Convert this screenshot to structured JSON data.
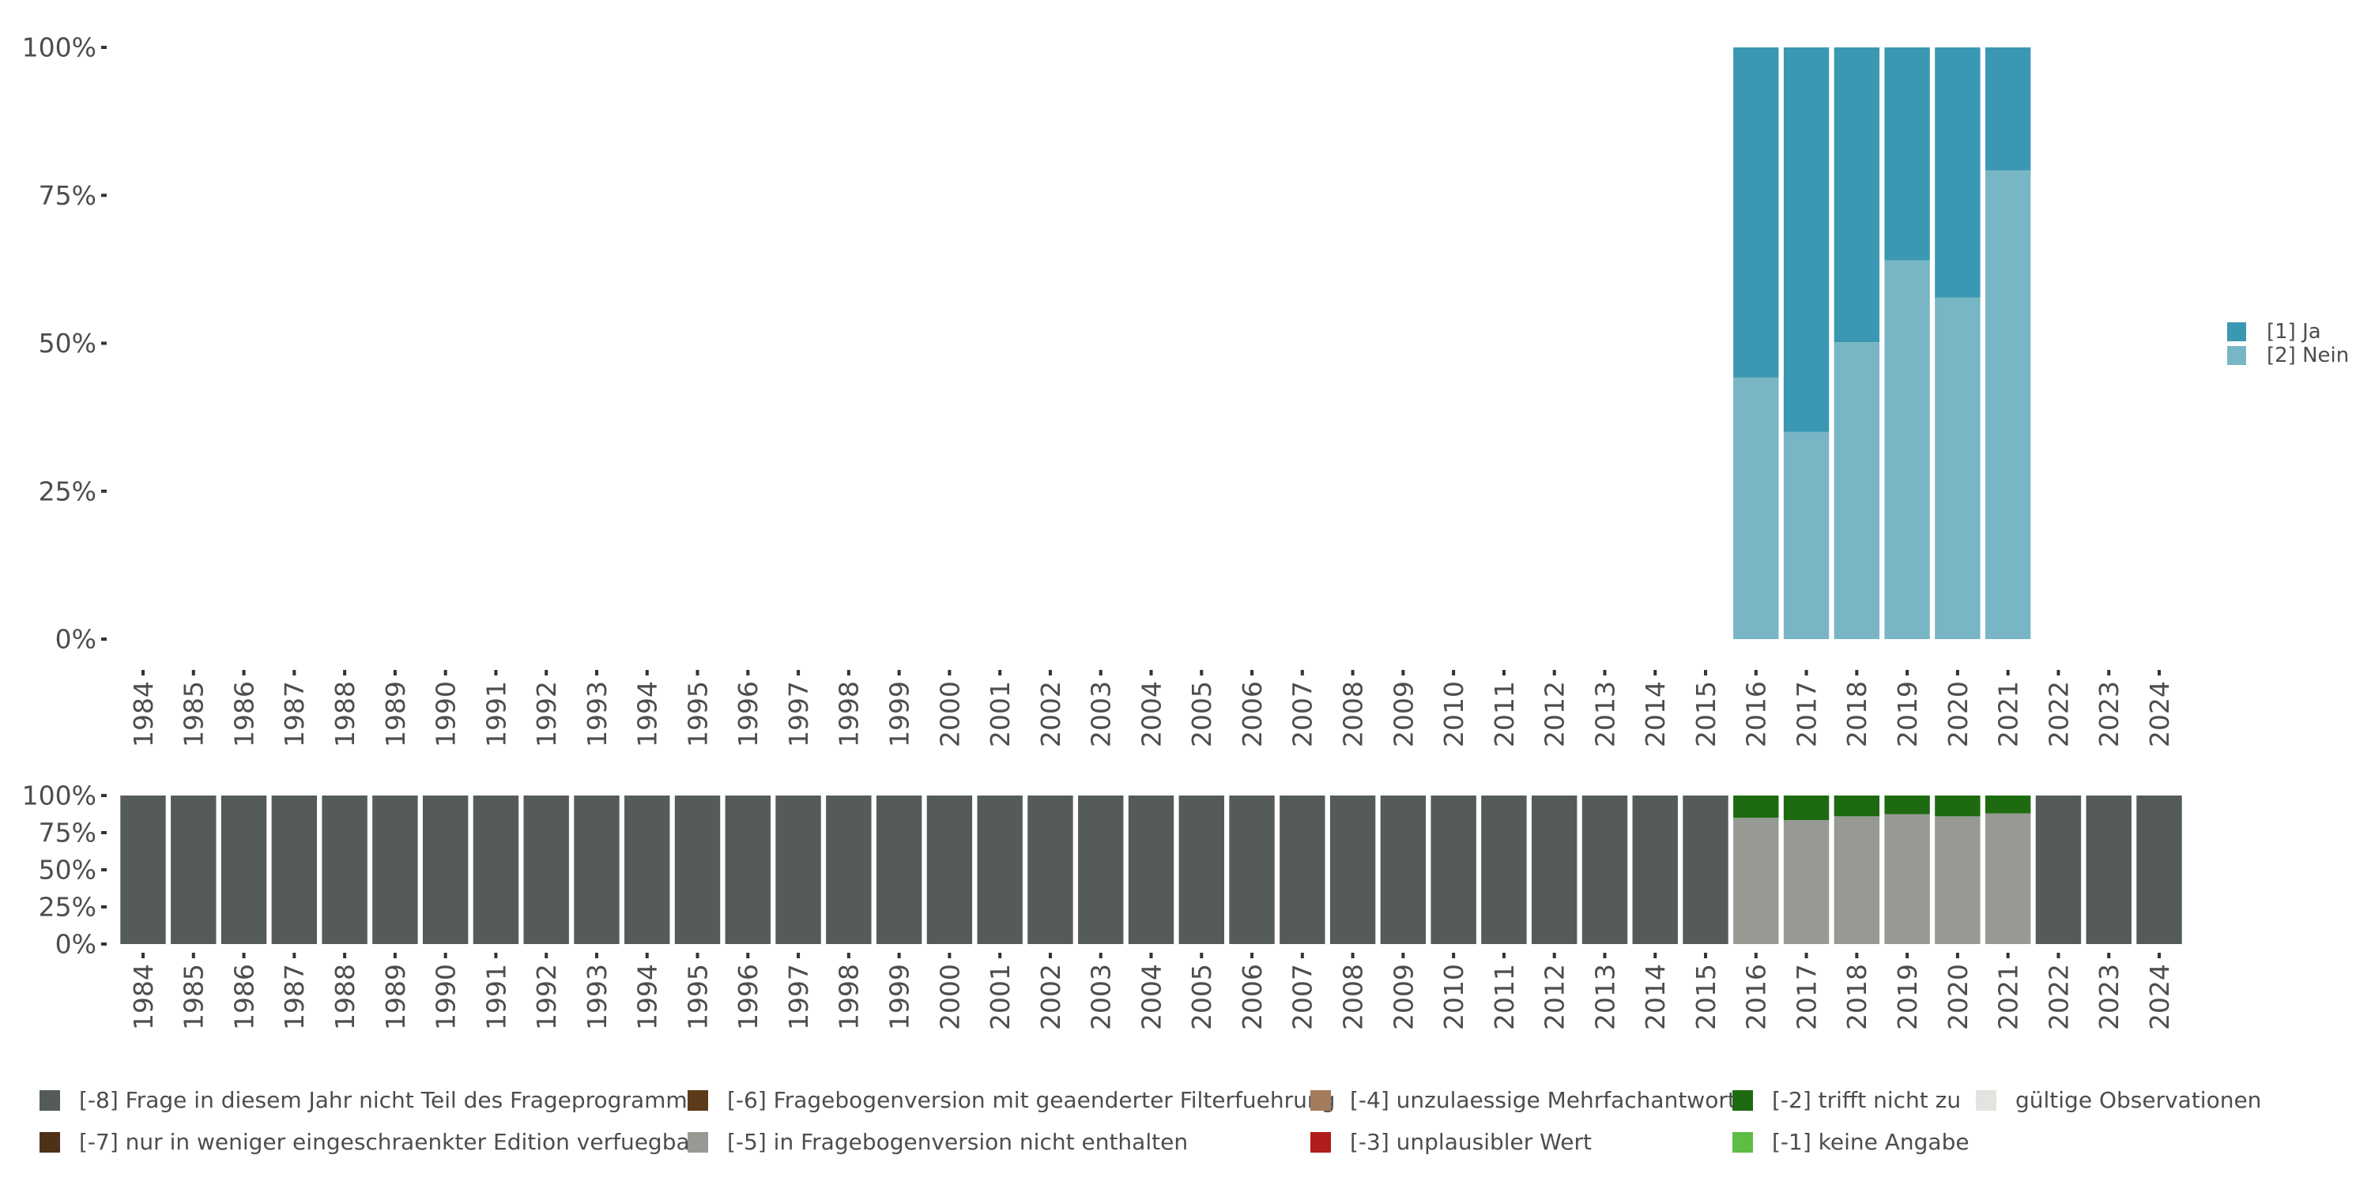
{
  "chart_data": [
    {
      "type": "bar",
      "stacked": true,
      "percent": true,
      "categories": [
        "1984",
        "1985",
        "1986",
        "1987",
        "1988",
        "1989",
        "1990",
        "1991",
        "1992",
        "1993",
        "1994",
        "1995",
        "1996",
        "1997",
        "1998",
        "1999",
        "2000",
        "2001",
        "2002",
        "2003",
        "2004",
        "2005",
        "2006",
        "2007",
        "2008",
        "2009",
        "2010",
        "2011",
        "2012",
        "2013",
        "2014",
        "2015",
        "2016",
        "2017",
        "2018",
        "2019",
        "2020",
        "2021",
        "2022",
        "2023",
        "2024"
      ],
      "y_tick_labels": [
        "0%",
        "25%",
        "50%",
        "75%",
        "100%"
      ],
      "ylim": [
        0,
        100
      ],
      "legend_position": "right",
      "series": [
        {
          "name": "[2] Nein",
          "color": "#78b6c6",
          "values": {
            "2016": 44.2,
            "2017": 35.0,
            "2018": 50.2,
            "2019": 64.0,
            "2020": 57.7,
            "2021": 79.2
          }
        },
        {
          "name": "[1] Ja",
          "color": "#3b98b3",
          "values": {
            "2016": 55.8,
            "2017": 65.0,
            "2018": 49.8,
            "2019": 36.0,
            "2020": 42.3,
            "2021": 20.8
          }
        }
      ]
    },
    {
      "type": "bar",
      "stacked": true,
      "percent": true,
      "categories": [
        "1984",
        "1985",
        "1986",
        "1987",
        "1988",
        "1989",
        "1990",
        "1991",
        "1992",
        "1993",
        "1994",
        "1995",
        "1996",
        "1997",
        "1998",
        "1999",
        "2000",
        "2001",
        "2002",
        "2003",
        "2004",
        "2005",
        "2006",
        "2007",
        "2008",
        "2009",
        "2010",
        "2011",
        "2012",
        "2013",
        "2014",
        "2015",
        "2016",
        "2017",
        "2018",
        "2019",
        "2020",
        "2021",
        "2022",
        "2023",
        "2024"
      ],
      "y_tick_labels": [
        "0%",
        "25%",
        "50%",
        "75%",
        "100%"
      ],
      "ylim": [
        0,
        100
      ],
      "legend_position": "bottom",
      "series": [
        {
          "name": "[-8] Frage in diesem Jahr nicht Teil des Frageprogramms",
          "color": "#555b56",
          "values": {
            "1984": 100,
            "1985": 100,
            "1986": 100,
            "1987": 100,
            "1988": 100,
            "1989": 100,
            "1990": 100,
            "1991": 100,
            "1992": 100,
            "1993": 100,
            "1994": 100,
            "1995": 100,
            "1996": 100,
            "1997": 100,
            "1998": 100,
            "1999": 100,
            "2000": 100,
            "2001": 100,
            "2002": 100,
            "2003": 100,
            "2004": 100,
            "2005": 100,
            "2006": 100,
            "2007": 100,
            "2008": 100,
            "2009": 100,
            "2010": 100,
            "2011": 100,
            "2012": 100,
            "2013": 100,
            "2014": 100,
            "2015": 100,
            "2022": 100,
            "2023": 100,
            "2024": 100
          }
        },
        {
          "name": "[-7] nur in weniger eingeschraenkter Edition verfuegbar",
          "color": "#4f3118",
          "values": {}
        },
        {
          "name": "[-6] Fragebogenversion mit geaenderter Filterfuehrung",
          "color": "#5c3a1a",
          "values": {}
        },
        {
          "name": "[-5] in Fragebogenversion nicht enthalten",
          "color": "#969a93",
          "values": {
            "2016": 85.0,
            "2017": 83.5,
            "2018": 86.0,
            "2019": 87.5,
            "2020": 86.0,
            "2021": 88.0
          }
        },
        {
          "name": "[-4] unzulaessige Mehrfachantwort",
          "color": "#a57c5b",
          "values": {}
        },
        {
          "name": "[-3] unplausibler Wert",
          "color": "#b21c1c",
          "values": {}
        },
        {
          "name": "[-2] trifft nicht zu",
          "color": "#1e6a10",
          "values": {
            "2016": 15.0,
            "2017": 16.5,
            "2018": 14.0,
            "2019": 12.5,
            "2020": 14.0,
            "2021": 12.0
          }
        },
        {
          "name": "[-1] keine Angabe",
          "color": "#5dbd45",
          "values": {}
        },
        {
          "name": "gültige Observationen",
          "color": "#e3e3e0",
          "values": {}
        }
      ]
    }
  ]
}
